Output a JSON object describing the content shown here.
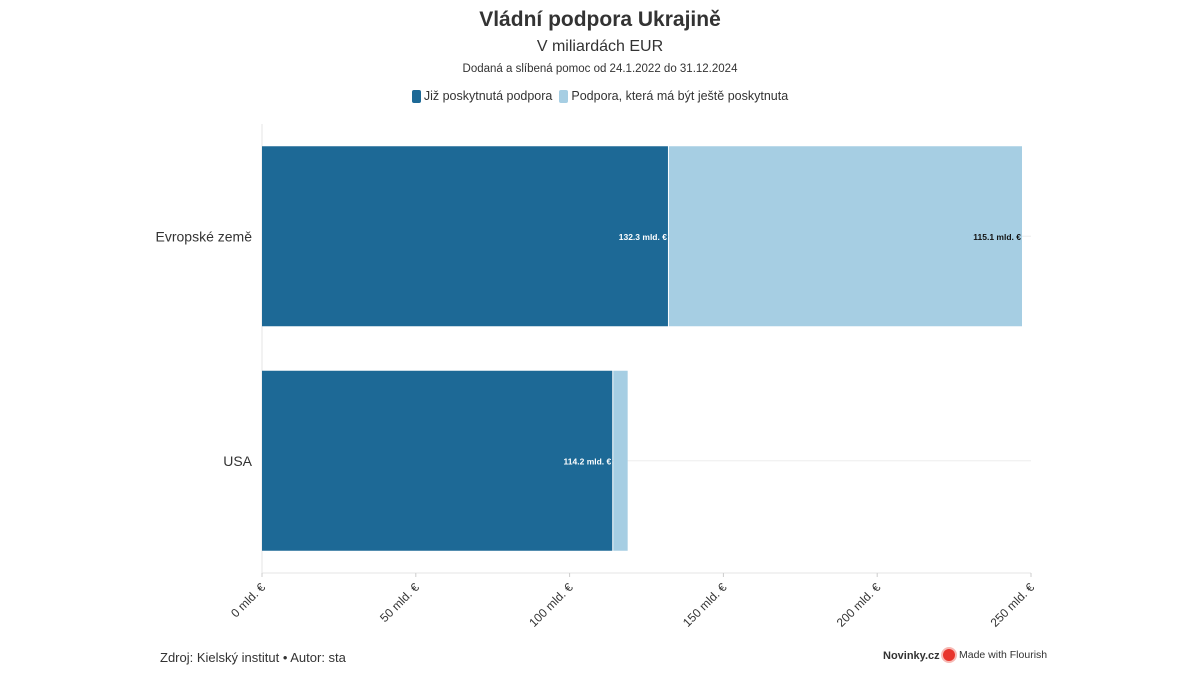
{
  "chart_data": {
    "type": "bar",
    "orientation": "horizontal",
    "stacked": true,
    "title": "Vládní podpora Ukrajině",
    "subtitle": "V miliardách EUR",
    "note": "Dodaná a slíbená pomoc od 24.1.2022 do 31.12.2024",
    "categories": [
      "Evropské země",
      "USA"
    ],
    "series": [
      {
        "name": "Již poskytnutá podpora",
        "color": "#1d6996",
        "values": [
          132.3,
          114.2
        ],
        "labels": [
          "132.3 mld. €",
          "114.2 mld. €"
        ]
      },
      {
        "name": "Podpora, která má být ještě poskytnuta",
        "color": "#a6cee3",
        "values": [
          115.1,
          5.0
        ],
        "labels": [
          "115.1 mld. €",
          ""
        ]
      }
    ],
    "xlim": [
      0,
      250
    ],
    "x_ticks": [
      0,
      50,
      100,
      150,
      200,
      250
    ],
    "x_tick_labels": [
      "0 mld. €",
      "50 mld. €",
      "100 mld. €",
      "150 mld. €",
      "200 mld. €",
      "250 mld. €"
    ],
    "legend_position": "top-center",
    "grid": true
  },
  "footer": {
    "source": "Zdroj: Kielský institut • Autor: sta",
    "brand": "Novinky.cz",
    "made_with": "Made with Flourish"
  },
  "colors": {
    "series1": "#1d6996",
    "series2": "#a6cee3",
    "flourish_icon": "#e8342c"
  }
}
